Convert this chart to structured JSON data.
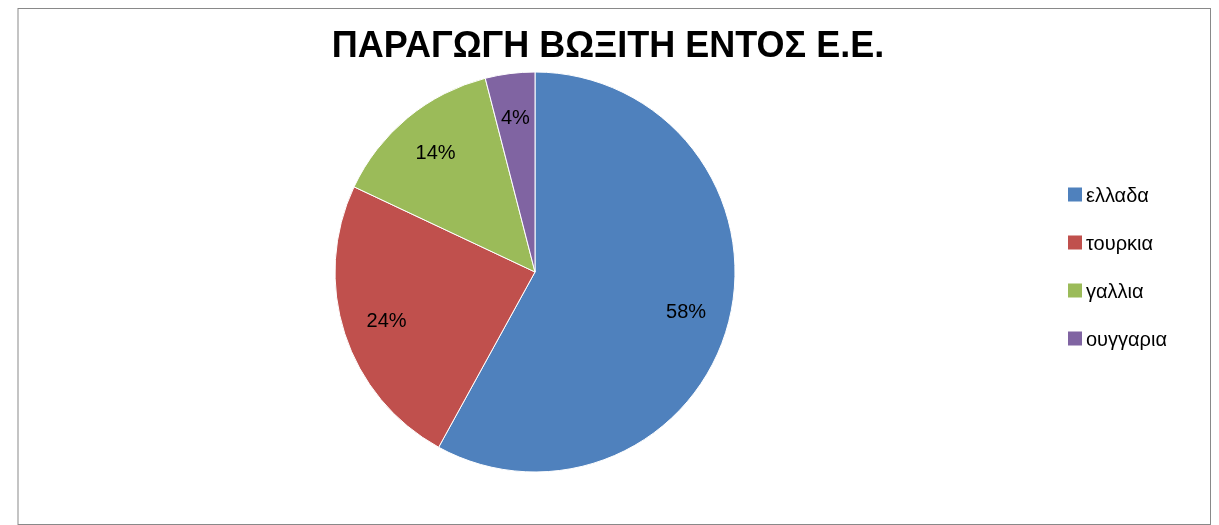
{
  "chart_data": {
    "type": "pie",
    "title": "ΠΑΡΑΓΩΓΗ ΒΩΞΙΤΗ ΕΝΤΟΣ Ε.Ε.",
    "categories": [
      "ελλαδα",
      "τουρκια",
      "γαλλια",
      "ουγγαρια"
    ],
    "values": [
      58,
      24,
      14,
      4
    ],
    "colors": [
      "#4f81bd",
      "#c0504d",
      "#9bbb59",
      "#8064a2"
    ],
    "value_labels": [
      "58%",
      "24%",
      "14%",
      "4%"
    ],
    "legend": "right"
  }
}
